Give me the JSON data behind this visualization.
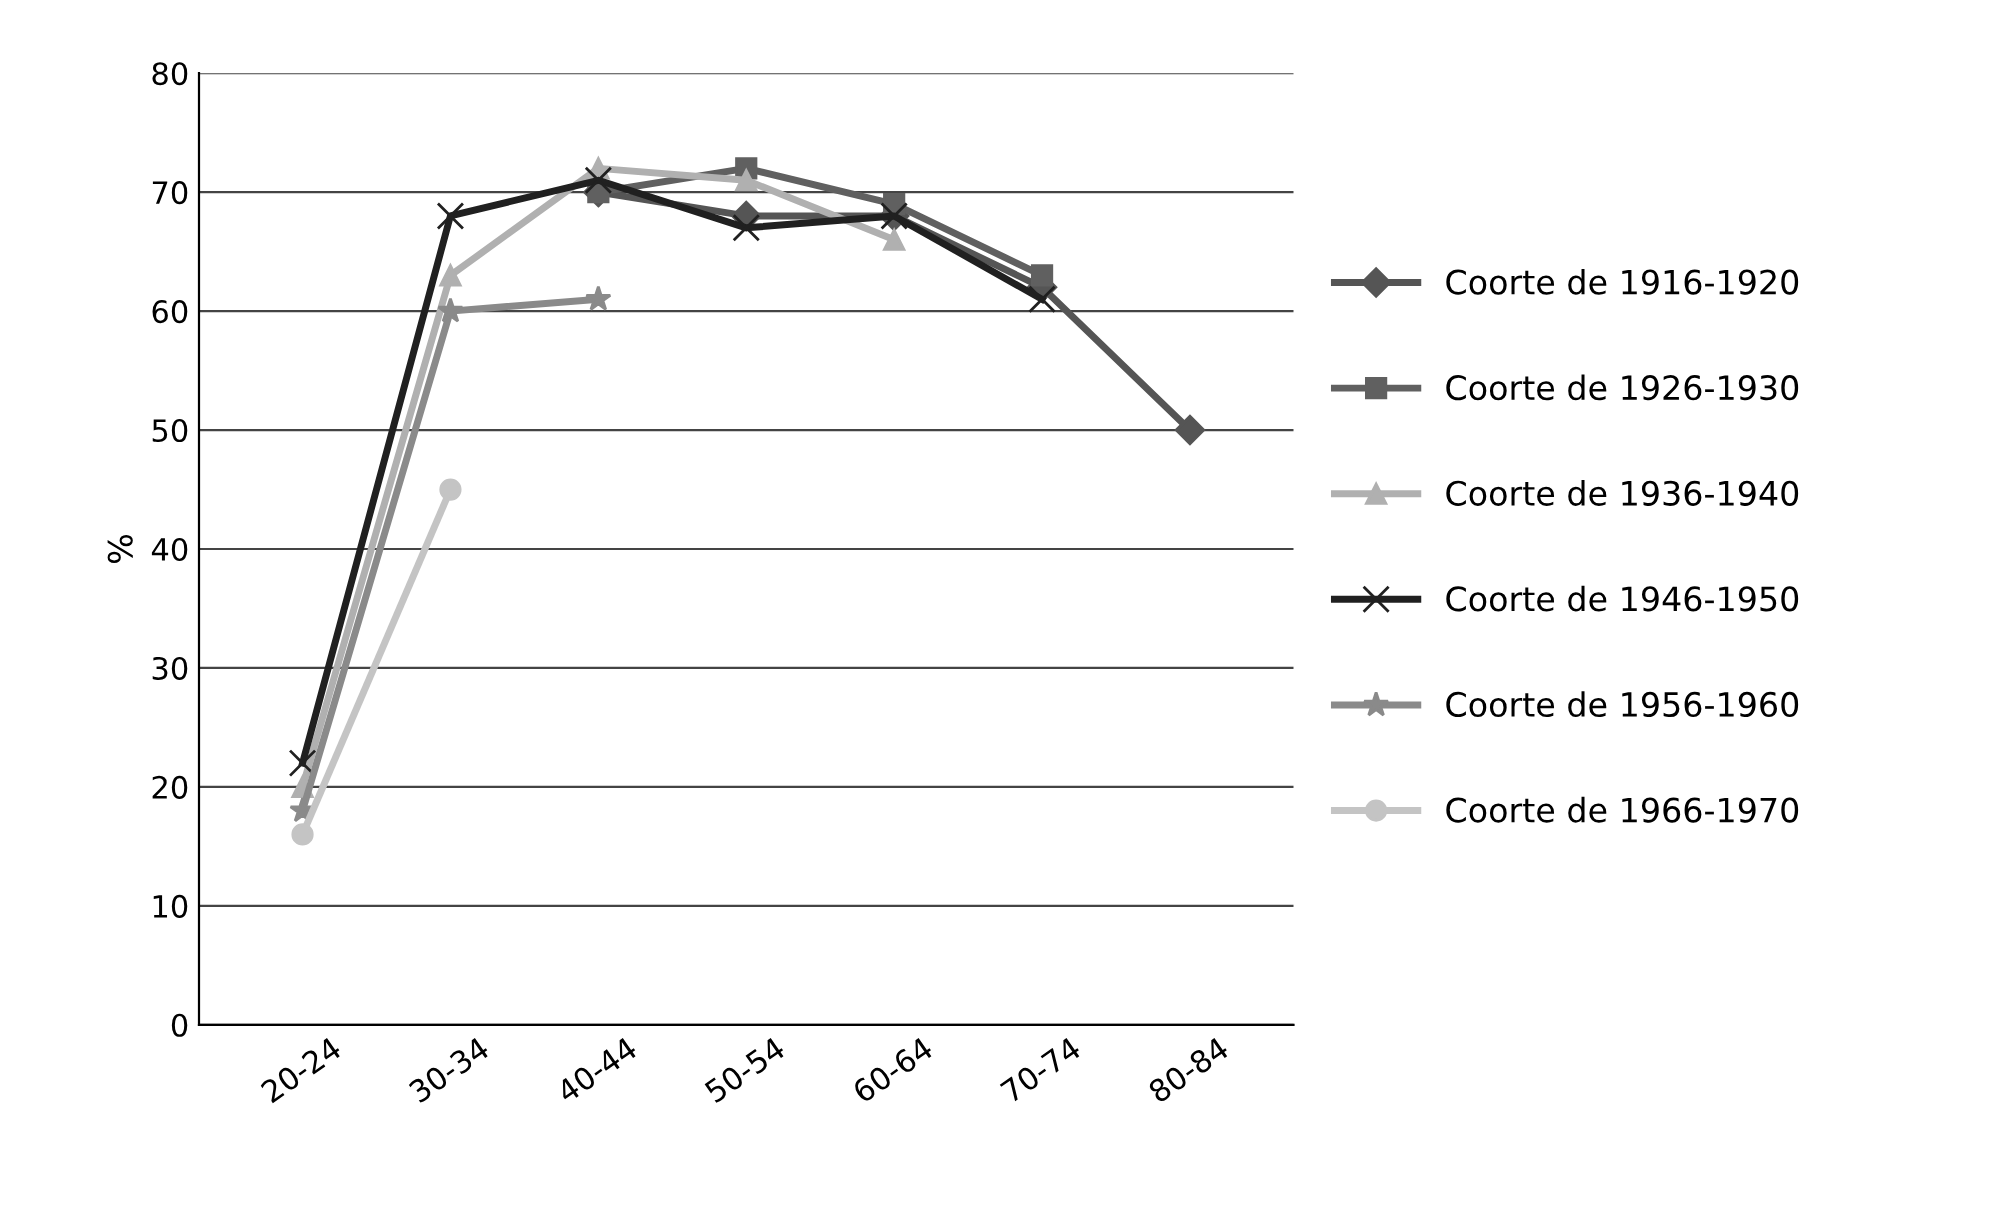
{
  "chart_data": {
    "type": "line",
    "ylabel": "%",
    "categories": [
      "20-24",
      "30-34",
      "40-44",
      "50-54",
      "60-64",
      "70-74",
      "80-84"
    ],
    "ylim": [
      0,
      80
    ],
    "yticks": [
      0,
      10,
      20,
      30,
      40,
      50,
      60,
      70,
      80
    ],
    "grid": "y",
    "legend": "right",
    "series": [
      {
        "name": "Coorte de 1916-1920",
        "color": "#555555",
        "marker": "diamond",
        "values": [
          null,
          null,
          70,
          68,
          68,
          62,
          50
        ]
      },
      {
        "name": "Coorte de 1926-1930",
        "color": "#606060",
        "marker": "square",
        "values": [
          null,
          null,
          70,
          72,
          69,
          63,
          null
        ]
      },
      {
        "name": "Coorte de 1936-1940",
        "color": "#b0b0b0",
        "marker": "triangle",
        "values": [
          20,
          63,
          72,
          71,
          66,
          null,
          null
        ]
      },
      {
        "name": "Coorte de 1946-1950",
        "color": "#202020",
        "marker": "cross",
        "values": [
          22,
          68,
          71,
          67,
          68,
          61,
          null
        ]
      },
      {
        "name": "Coorte de 1956-1960",
        "color": "#8a8a8a",
        "marker": "star",
        "values": [
          18,
          60,
          61,
          null,
          null,
          null,
          null
        ]
      },
      {
        "name": "Coorte de 1966-1970",
        "color": "#c4c4c4",
        "marker": "circle",
        "values": [
          16,
          45,
          null,
          null,
          null,
          null,
          null
        ]
      }
    ]
  }
}
